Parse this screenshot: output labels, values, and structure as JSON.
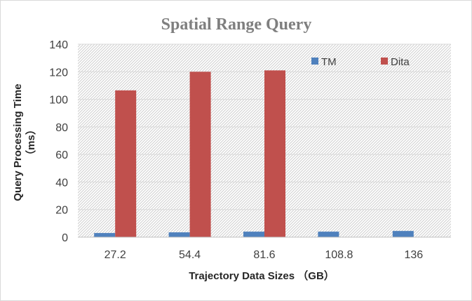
{
  "chart_data": {
    "type": "bar",
    "title": "Spatial Range Query",
    "xlabel": "Trajectory Data Sizes （GB）",
    "ylabel_line1": "Query Processing Time",
    "ylabel_line2": "（ms）",
    "categories": [
      "27.2",
      "54.4",
      "81.6",
      "108.8",
      "136"
    ],
    "ylim": [
      0,
      140
    ],
    "yticks": [
      0,
      20,
      40,
      60,
      80,
      100,
      120,
      140
    ],
    "grid": true,
    "legend_position": "top-right",
    "series": [
      {
        "name": "TM",
        "color": "#4f81bd",
        "values": [
          3,
          3.5,
          4,
          4,
          4.5
        ]
      },
      {
        "name": "Dita",
        "color": "#c0504d",
        "values": [
          106.5,
          120,
          121,
          0,
          0
        ]
      }
    ]
  }
}
